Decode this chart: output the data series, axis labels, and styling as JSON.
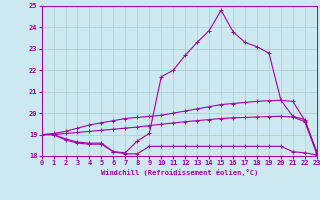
{
  "xlabel": "Windchill (Refroidissement éolien,°C)",
  "background_color": "#cce8f0",
  "line_color": "#aa00aa",
  "grid_color": "#aacccc",
  "x_values": [
    0,
    1,
    2,
    3,
    4,
    5,
    6,
    7,
    8,
    9,
    10,
    11,
    12,
    13,
    14,
    15,
    16,
    17,
    18,
    19,
    20,
    21,
    22,
    23
  ],
  "series_peak": [
    19.0,
    19.0,
    18.8,
    18.65,
    18.6,
    18.6,
    18.2,
    18.15,
    18.7,
    19.05,
    21.7,
    22.0,
    22.7,
    23.3,
    23.85,
    24.8,
    23.8,
    23.3,
    23.1,
    22.8,
    20.6,
    19.85,
    19.7,
    18.15
  ],
  "series_flat": [
    19.0,
    19.0,
    18.75,
    18.6,
    18.55,
    18.55,
    18.2,
    18.1,
    18.1,
    18.45,
    18.45,
    18.45,
    18.45,
    18.45,
    18.45,
    18.45,
    18.45,
    18.45,
    18.45,
    18.45,
    18.45,
    18.2,
    18.15,
    18.05
  ],
  "series_upper": [
    19.0,
    19.05,
    19.15,
    19.3,
    19.45,
    19.55,
    19.65,
    19.75,
    19.8,
    19.85,
    19.9,
    20.0,
    20.1,
    20.2,
    20.3,
    20.4,
    20.45,
    20.5,
    20.55,
    20.58,
    20.6,
    20.55,
    19.65,
    18.2
  ],
  "series_lower": [
    19.0,
    19.0,
    19.05,
    19.1,
    19.15,
    19.2,
    19.25,
    19.3,
    19.35,
    19.42,
    19.48,
    19.54,
    19.6,
    19.65,
    19.7,
    19.75,
    19.78,
    19.8,
    19.82,
    19.84,
    19.85,
    19.82,
    19.6,
    18.1
  ],
  "ylim": [
    18,
    25
  ],
  "xlim": [
    0,
    23
  ],
  "yticks": [
    18,
    19,
    20,
    21,
    22,
    23,
    24,
    25
  ],
  "xticks": [
    0,
    1,
    2,
    3,
    4,
    5,
    6,
    7,
    8,
    9,
    10,
    11,
    12,
    13,
    14,
    15,
    16,
    17,
    18,
    19,
    20,
    21,
    22,
    23
  ]
}
